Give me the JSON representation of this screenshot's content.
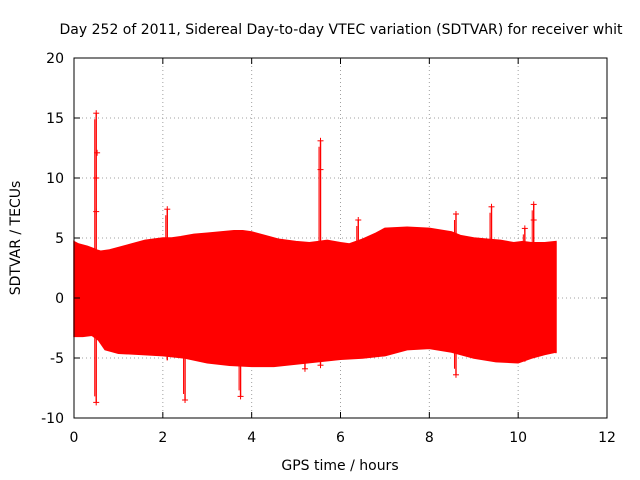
{
  "chart_data": {
    "type": "scatter",
    "title": "Day 252 of 2011, Sidereal Day-to-day VTEC variation (SDTVAR) for receiver whit",
    "xlabel": "GPS time / hours",
    "ylabel": "SDTVAR / TECUs",
    "xlim": [
      0,
      12
    ],
    "ylim": [
      -10,
      20
    ],
    "xticks": [
      "0",
      "2",
      "4",
      "6",
      "8",
      "10",
      "12"
    ],
    "yticks": [
      "-10",
      "-5",
      "0",
      "5",
      "10",
      "15",
      "20"
    ],
    "grid": true,
    "marker_color": "#ff0000",
    "series": [
      {
        "name": "SDTVAR",
        "upper_envelope": {
          "x": [
            0.0,
            0.1,
            0.3,
            0.45,
            0.5,
            0.6,
            0.8,
            1.0,
            1.3,
            1.6,
            2.0,
            2.2,
            2.4,
            2.7,
            3.0,
            3.3,
            3.6,
            3.8,
            4.0,
            4.3,
            4.6,
            5.0,
            5.3,
            5.5,
            5.7,
            6.0,
            6.2,
            6.5,
            6.8,
            7.0,
            7.5,
            8.0,
            8.5,
            8.7,
            9.0,
            9.3,
            9.6,
            9.9,
            10.1,
            10.3,
            10.6,
            10.85
          ],
          "y": [
            4.7,
            4.5,
            4.3,
            4.1,
            4.0,
            3.9,
            4.0,
            4.2,
            4.5,
            4.8,
            5.0,
            5.0,
            5.1,
            5.3,
            5.4,
            5.5,
            5.6,
            5.6,
            5.5,
            5.2,
            4.9,
            4.7,
            4.6,
            4.7,
            4.8,
            4.6,
            4.5,
            4.9,
            5.4,
            5.8,
            5.9,
            5.8,
            5.5,
            5.2,
            5.0,
            4.9,
            4.8,
            4.6,
            4.7,
            4.6,
            4.6,
            4.7
          ]
        },
        "lower_envelope": {
          "x": [
            0.0,
            0.2,
            0.4,
            0.55,
            0.7,
            1.0,
            1.5,
            2.0,
            2.5,
            3.0,
            3.5,
            4.0,
            4.5,
            5.0,
            5.5,
            6.0,
            6.5,
            7.0,
            7.5,
            8.0,
            8.5,
            8.7,
            9.0,
            9.5,
            10.0,
            10.3,
            10.6,
            10.85
          ],
          "y": [
            -3.2,
            -3.2,
            -3.1,
            -3.5,
            -4.3,
            -4.6,
            -4.7,
            -4.8,
            -5.0,
            -5.4,
            -5.6,
            -5.7,
            -5.7,
            -5.5,
            -5.3,
            -5.1,
            -5.0,
            -4.8,
            -4.3,
            -4.2,
            -4.5,
            -4.7,
            -5.0,
            -5.3,
            -5.4,
            -5.0,
            -4.7,
            -4.5
          ]
        },
        "spikes": [
          {
            "x": 0.5,
            "top": 15.4,
            "bottom": -8.7
          },
          {
            "x": 2.1,
            "top": 7.4,
            "bottom": -5.2
          },
          {
            "x": 2.5,
            "top": 5.0,
            "bottom": -8.5
          },
          {
            "x": 3.75,
            "top": 5.5,
            "bottom": -8.2
          },
          {
            "x": 5.55,
            "top": 13.1,
            "bottom": -5.6
          },
          {
            "x": 5.2,
            "top": 4.6,
            "bottom": -5.9
          },
          {
            "x": 6.4,
            "top": 6.5,
            "bottom": -5.0
          },
          {
            "x": 8.6,
            "top": 7.0,
            "bottom": -6.4
          },
          {
            "x": 9.4,
            "top": 7.6,
            "bottom": -5.2
          },
          {
            "x": 10.15,
            "top": 5.8,
            "bottom": -5.3
          },
          {
            "x": 10.35,
            "top": 7.8,
            "bottom": -5.0
          },
          {
            "x": 10.85,
            "top": 4.7,
            "bottom": -4.6
          }
        ],
        "outlier_points": [
          {
            "x": 0.5,
            "y": 15.4
          },
          {
            "x": 0.52,
            "y": 12.1
          },
          {
            "x": 0.5,
            "y": 10.0
          },
          {
            "x": 0.5,
            "y": 7.2
          },
          {
            "x": 0.5,
            "y": -8.7
          },
          {
            "x": 2.1,
            "y": 7.4
          },
          {
            "x": 2.5,
            "y": -8.5
          },
          {
            "x": 3.75,
            "y": -8.2
          },
          {
            "x": 5.55,
            "y": 13.1
          },
          {
            "x": 5.55,
            "y": 10.7
          },
          {
            "x": 5.2,
            "y": -5.9
          },
          {
            "x": 5.55,
            "y": -5.6
          },
          {
            "x": 6.4,
            "y": 6.5
          },
          {
            "x": 8.6,
            "y": 7.0
          },
          {
            "x": 8.6,
            "y": -6.4
          },
          {
            "x": 9.4,
            "y": 7.6
          },
          {
            "x": 10.15,
            "y": 5.8
          },
          {
            "x": 10.35,
            "y": 7.8
          },
          {
            "x": 10.35,
            "y": 6.5
          }
        ]
      }
    ]
  }
}
